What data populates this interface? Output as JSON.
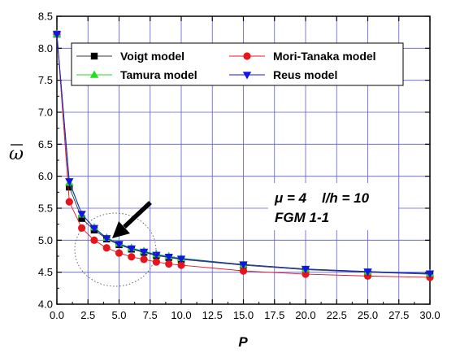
{
  "chart_data": {
    "type": "line",
    "title": "",
    "xlabel": "P",
    "ylabel": "ω",
    "xlim": [
      0,
      30
    ],
    "ylim": [
      4.0,
      8.5
    ],
    "xticks": [
      "0.0",
      "2.5",
      "5.0",
      "7.5",
      "10.0",
      "12.5",
      "15.0",
      "17.5",
      "20.0",
      "22.5",
      "25.0",
      "27.5",
      "30.0"
    ],
    "yticks": [
      "4.0",
      "4.5",
      "5.0",
      "5.5",
      "6.0",
      "6.5",
      "7.0",
      "7.5",
      "8.0",
      "8.5"
    ],
    "grid": true,
    "legend_position": "top",
    "x": [
      0,
      1,
      2,
      3,
      4,
      5,
      6,
      7,
      8,
      9,
      10,
      15,
      20,
      25,
      30
    ],
    "series": [
      {
        "name": "Voigt model",
        "marker": "square",
        "color": "#000000",
        "values": [
          8.22,
          5.83,
          5.34,
          5.16,
          5.02,
          4.93,
          4.86,
          4.81,
          4.76,
          4.73,
          4.7,
          4.61,
          4.54,
          4.5,
          4.47
        ]
      },
      {
        "name": "Mori-Tanaka model",
        "marker": "circle",
        "color": "#e8141c",
        "values": [
          8.22,
          5.6,
          5.19,
          5.0,
          4.88,
          4.8,
          4.74,
          4.7,
          4.66,
          4.63,
          4.61,
          4.52,
          4.47,
          4.44,
          4.42
        ]
      },
      {
        "name": "Tamura model",
        "marker": "triangle-up",
        "color": "#22dd22",
        "values": [
          8.22,
          5.9,
          5.4,
          5.2,
          5.04,
          4.95,
          4.88,
          4.83,
          4.78,
          4.75,
          4.72,
          4.62,
          4.55,
          4.51,
          4.48
        ]
      },
      {
        "name": "Reus model",
        "marker": "triangle-down",
        "color": "#1414e8",
        "values": [
          8.22,
          5.92,
          5.41,
          5.19,
          5.03,
          4.94,
          4.87,
          4.82,
          4.77,
          4.74,
          4.71,
          4.62,
          4.55,
          4.51,
          4.48
        ]
      }
    ],
    "annotations": {
      "line1": "μ = 4    l/h = 10",
      "line2": "FGM 1-1"
    }
  }
}
